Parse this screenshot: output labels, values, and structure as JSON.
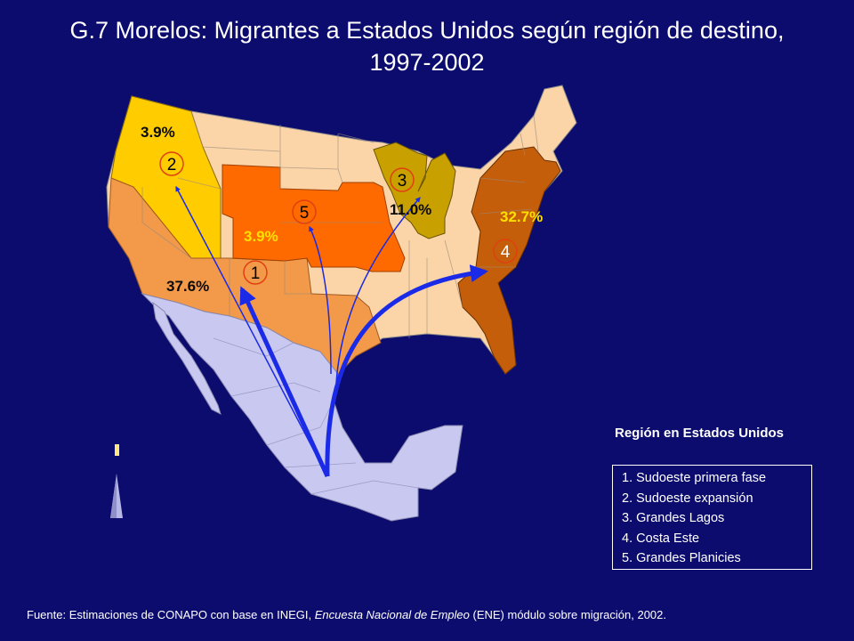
{
  "title": "G.7 Morelos: Migrantes a Estados Unidos según región de destino, 1997-2002",
  "regions": [
    {
      "number": "1",
      "name": "Sudoeste primera fase",
      "percent": "37.6%",
      "color": "#f29a4a"
    },
    {
      "number": "2",
      "name": "Sudoeste expansión",
      "percent": "3.9%",
      "color": "#ffcc00"
    },
    {
      "number": "3",
      "name": "Grandes Lagos",
      "percent": "11.0%",
      "color": "#c8a000"
    },
    {
      "number": "4",
      "name": "Costa Este",
      "percent": "32.7%",
      "color": "#c45e0a"
    },
    {
      "number": "5",
      "name": "Grandes Planicies",
      "percent": "3.9%",
      "color": "#ff6a00"
    }
  ],
  "colors": {
    "background": "#0c0c6e",
    "other_states": "#fbd4a8",
    "mexico": "#c8c8f0",
    "arrow": "#1a2ae6",
    "percent_yellow": "#ffe000",
    "percent_dark": "#0a0a0a"
  },
  "legend": {
    "title": "Región en Estados Unidos",
    "items": [
      "1. Sudoeste primera fase",
      "2. Sudoeste expansión",
      "3. Grandes Lagos",
      "4. Costa Este",
      "5. Grandes Planicies"
    ]
  },
  "source": {
    "prefix": "Fuente: Estimaciones de CONAPO con base en INEGI, ",
    "italic": "Encuesta Nacional de Empleo",
    "suffix": " (ENE) módulo sobre migración, 2002."
  }
}
